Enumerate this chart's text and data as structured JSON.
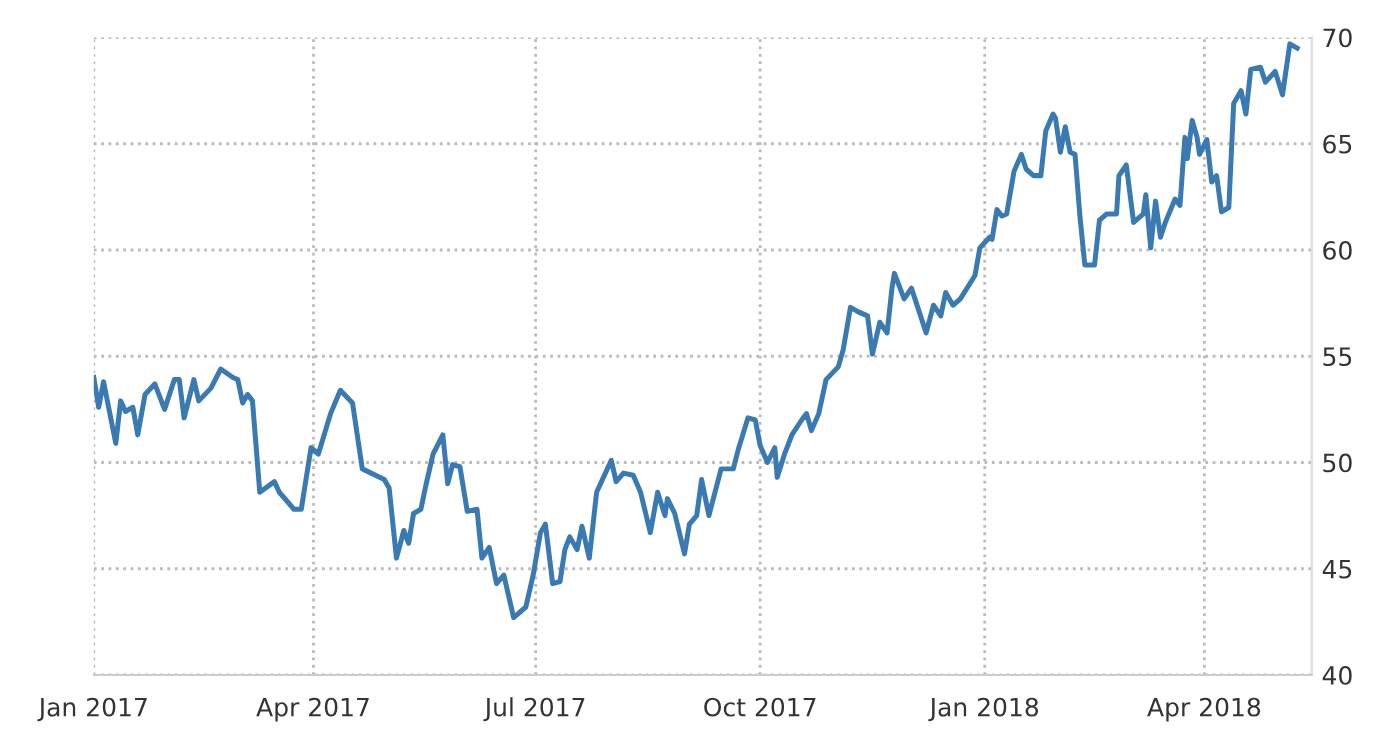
{
  "chart_data": {
    "type": "line",
    "xlim": [
      "2017-01-01",
      "2018-05-15"
    ],
    "ylim": [
      40,
      70
    ],
    "xticks": [
      {
        "value": "2017-01-01",
        "label": "Jan 2017"
      },
      {
        "value": "2017-04-01",
        "label": "Apr 2017"
      },
      {
        "value": "2017-07-01",
        "label": "Jul 2017"
      },
      {
        "value": "2017-10-01",
        "label": "Oct 2017"
      },
      {
        "value": "2018-01-01",
        "label": "Jan 2018"
      },
      {
        "value": "2018-04-01",
        "label": "Apr 2018"
      }
    ],
    "yticks": [
      40,
      45,
      50,
      55,
      60,
      65,
      70
    ],
    "grid": true,
    "marker": "none",
    "line_style": "solid",
    "series": [
      {
        "color": "#3a7ab3",
        "x": [
          "2017-01-01",
          "2017-01-03",
          "2017-01-05",
          "2017-01-10",
          "2017-01-12",
          "2017-01-14",
          "2017-01-17",
          "2017-01-19",
          "2017-01-22",
          "2017-01-26",
          "2017-01-30",
          "2017-02-03",
          "2017-02-05",
          "2017-02-07",
          "2017-02-11",
          "2017-02-13",
          "2017-02-18",
          "2017-02-22",
          "2017-02-27",
          "2017-03-01",
          "2017-03-03",
          "2017-03-05",
          "2017-03-07",
          "2017-03-10",
          "2017-03-16",
          "2017-03-18",
          "2017-03-24",
          "2017-03-27",
          "2017-03-31",
          "2017-04-03",
          "2017-04-08",
          "2017-04-12",
          "2017-04-17",
          "2017-04-21",
          "2017-04-30",
          "2017-05-02",
          "2017-05-05",
          "2017-05-08",
          "2017-05-10",
          "2017-05-12",
          "2017-05-15",
          "2017-05-17",
          "2017-05-20",
          "2017-05-24",
          "2017-05-26",
          "2017-05-28",
          "2017-05-31",
          "2017-06-03",
          "2017-06-07",
          "2017-06-09",
          "2017-06-12",
          "2017-06-15",
          "2017-06-18",
          "2017-06-22",
          "2017-06-27",
          "2017-06-30",
          "2017-07-03",
          "2017-07-05",
          "2017-07-08",
          "2017-07-11",
          "2017-07-13",
          "2017-07-15",
          "2017-07-18",
          "2017-07-20",
          "2017-07-23",
          "2017-07-26",
          "2017-08-01",
          "2017-08-03",
          "2017-08-06",
          "2017-08-10",
          "2017-08-13",
          "2017-08-17",
          "2017-08-20",
          "2017-08-23",
          "2017-08-24",
          "2017-08-27",
          "2017-08-31",
          "2017-09-02",
          "2017-09-05",
          "2017-09-07",
          "2017-09-10",
          "2017-09-15",
          "2017-09-20",
          "2017-09-22",
          "2017-09-26",
          "2017-09-29",
          "2017-10-01",
          "2017-10-04",
          "2017-10-07",
          "2017-10-08",
          "2017-10-11",
          "2017-10-14",
          "2017-10-18",
          "2017-10-20",
          "2017-10-22",
          "2017-10-25",
          "2017-10-28",
          "2017-11-02",
          "2017-11-04",
          "2017-11-07",
          "2017-11-10",
          "2017-11-14",
          "2017-11-16",
          "2017-11-19",
          "2017-11-22",
          "2017-11-24",
          "2017-11-25",
          "2017-11-29",
          "2017-12-02",
          "2017-12-08",
          "2017-12-11",
          "2017-12-14",
          "2017-12-16",
          "2017-12-19",
          "2017-12-22",
          "2017-12-28",
          "2017-12-30",
          "2018-01-03",
          "2018-01-04",
          "2018-01-06",
          "2018-01-08",
          "2018-01-10",
          "2018-01-13",
          "2018-01-16",
          "2018-01-18",
          "2018-01-21",
          "2018-01-24",
          "2018-01-26",
          "2018-01-29",
          "2018-01-30",
          "2018-02-01",
          "2018-02-03",
          "2018-02-05",
          "2018-02-07",
          "2018-02-09",
          "2018-02-11",
          "2018-02-15",
          "2018-02-17",
          "2018-02-20",
          "2018-02-24",
          "2018-02-25",
          "2018-02-28",
          "2018-03-03",
          "2018-03-07",
          "2018-03-08",
          "2018-03-10",
          "2018-03-12",
          "2018-03-14",
          "2018-03-16",
          "2018-03-20",
          "2018-03-22",
          "2018-03-24",
          "2018-03-25",
          "2018-03-27",
          "2018-03-29",
          "2018-03-30",
          "2018-04-02",
          "2018-04-04",
          "2018-04-06",
          "2018-04-08",
          "2018-04-11",
          "2018-04-13",
          "2018-04-16",
          "2018-04-18",
          "2018-04-20",
          "2018-04-24",
          "2018-04-26",
          "2018-04-30",
          "2018-05-03",
          "2018-05-06",
          "2018-05-09"
        ],
        "values": [
          54.0,
          52.6,
          53.8,
          50.9,
          52.9,
          52.4,
          52.6,
          51.3,
          53.2,
          53.7,
          52.5,
          53.9,
          53.9,
          52.1,
          53.9,
          52.9,
          53.5,
          54.4,
          54.0,
          53.9,
          52.8,
          53.2,
          52.9,
          48.6,
          49.1,
          48.6,
          47.8,
          47.8,
          50.7,
          50.4,
          52.3,
          53.4,
          52.8,
          49.7,
          49.2,
          48.8,
          45.5,
          46.8,
          46.2,
          47.6,
          47.8,
          48.9,
          50.4,
          51.3,
          49.0,
          49.9,
          49.8,
          47.7,
          47.8,
          45.5,
          46.0,
          44.3,
          44.7,
          42.7,
          43.2,
          44.7,
          46.7,
          47.1,
          44.3,
          44.4,
          45.9,
          46.5,
          45.9,
          47.0,
          45.5,
          48.6,
          50.1,
          49.1,
          49.5,
          49.4,
          48.6,
          46.7,
          48.6,
          47.5,
          48.3,
          47.6,
          45.7,
          47.1,
          47.5,
          49.2,
          47.5,
          49.7,
          49.7,
          50.6,
          52.1,
          52.0,
          50.8,
          50.0,
          50.7,
          49.3,
          50.4,
          51.3,
          52.0,
          52.3,
          51.5,
          52.3,
          53.9,
          54.5,
          55.3,
          57.3,
          57.1,
          56.9,
          55.1,
          56.6,
          56.1,
          58.2,
          58.9,
          57.7,
          58.2,
          56.1,
          57.4,
          56.9,
          58.0,
          57.4,
          57.7,
          58.8,
          60.1,
          60.6,
          60.5,
          61.9,
          61.6,
          61.7,
          63.7,
          64.5,
          63.8,
          63.5,
          63.5,
          65.6,
          66.4,
          66.2,
          64.6,
          65.8,
          64.6,
          64.5,
          61.6,
          59.3,
          59.3,
          61.4,
          61.7,
          61.7,
          63.5,
          64.0,
          61.3,
          61.7,
          62.6,
          60.1,
          62.3,
          60.6,
          61.3,
          62.4,
          62.1,
          65.3,
          64.3,
          66.1,
          65.3,
          64.5,
          65.2,
          63.2,
          63.5,
          61.8,
          62.0,
          66.9,
          67.5,
          66.4,
          68.5,
          68.6,
          67.9,
          68.4,
          67.3,
          69.7,
          69.5
        ]
      }
    ]
  }
}
